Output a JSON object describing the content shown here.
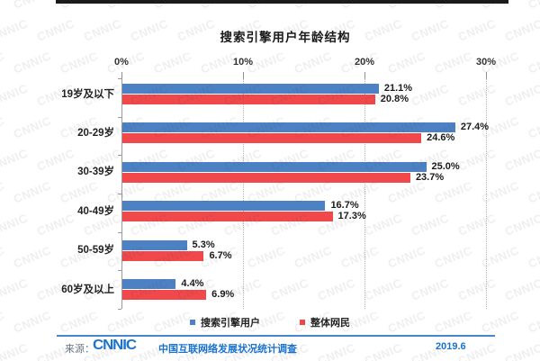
{
  "title": "搜索引擎用户年龄结构",
  "chart_data": {
    "type": "bar",
    "orientation": "horizontal",
    "categories": [
      "19岁及以下",
      "20-29岁",
      "30-39岁",
      "40-49岁",
      "50-59岁",
      "60岁及以上"
    ],
    "series": [
      {
        "name": "搜索引擎用户",
        "color": "#4c81c4",
        "values": [
          21.1,
          27.4,
          25.0,
          16.7,
          5.3,
          4.4
        ]
      },
      {
        "name": "整体网民",
        "color": "#f0484b",
        "values": [
          20.8,
          24.6,
          23.7,
          17.3,
          6.7,
          6.9
        ]
      }
    ],
    "value_labels": [
      [
        "21.1%",
        "27.4%",
        "25.0%",
        "16.7%",
        "5.3%",
        "4.4%"
      ],
      [
        "20.8%",
        "24.6%",
        "23.7%",
        "17.3%",
        "6.7%",
        "6.9%"
      ]
    ],
    "x_ticks": [
      {
        "value": 0,
        "label": "0%"
      },
      {
        "value": 10,
        "label": "10%"
      },
      {
        "value": 20,
        "label": "20%"
      },
      {
        "value": 30,
        "label": "30%"
      }
    ],
    "xlim": [
      0,
      30
    ],
    "grid": "dotted-vertical",
    "legend_position": "bottom-center"
  },
  "legend": {
    "items": [
      {
        "label": "搜索引擎用户",
        "color": "#4c81c4"
      },
      {
        "label": "整体网民",
        "color": "#f0484b"
      }
    ]
  },
  "footer": {
    "source_prefix": "来源：",
    "logo": "CNNIC",
    "source_text": "中国互联网络发展状况统计调查",
    "date": "2019.6"
  },
  "watermark": {
    "text": "CNNIC"
  },
  "colors": {
    "topbar": "#1a1a1a",
    "footer_blue": "#1a73cf",
    "bar_blue": "#4c81c4",
    "bar_red": "#f0484b"
  }
}
